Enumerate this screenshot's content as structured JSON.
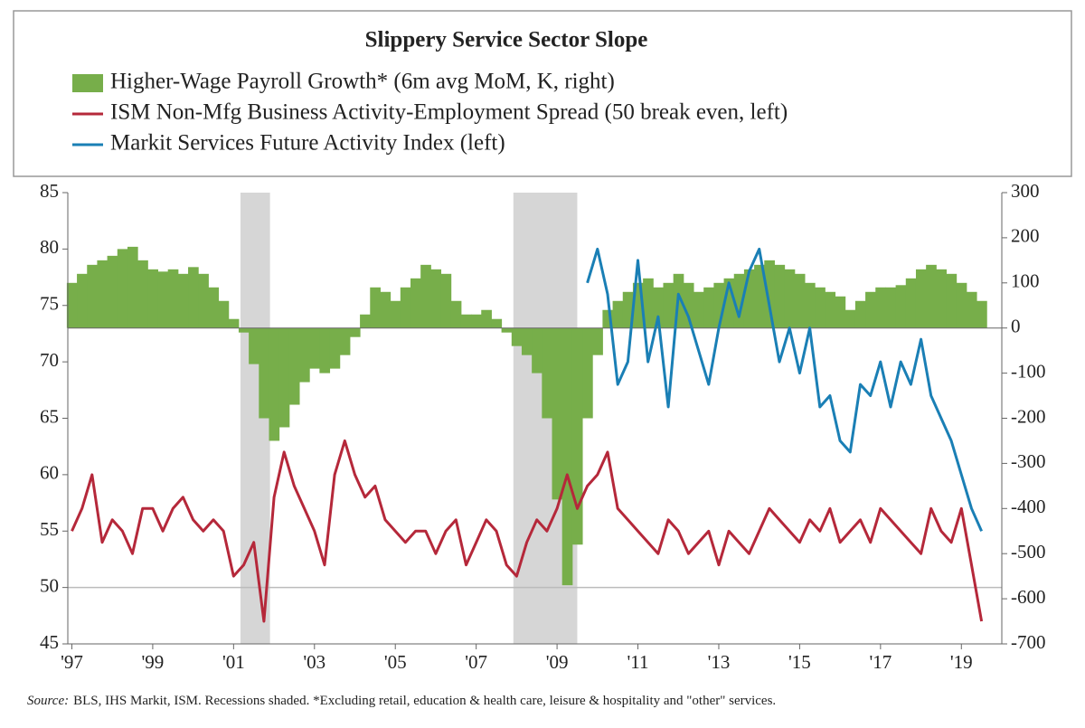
{
  "chart_data": {
    "type": "combo",
    "title": "Slippery Service Sector Slope",
    "source_label": "Source:",
    "source_text": "BLS, IHS Markit, ISM. Recessions shaded. *Excluding retail, education & health care, leisure & hospitality and \"other\" services.",
    "xlim": [
      1996.9,
      2020.0
    ],
    "xticks": [
      {
        "value": 1997,
        "label": "'97"
      },
      {
        "value": 1999,
        "label": "'99"
      },
      {
        "value": 2001,
        "label": "'01"
      },
      {
        "value": 2003,
        "label": "'03"
      },
      {
        "value": 2005,
        "label": "'05"
      },
      {
        "value": 2007,
        "label": "'07"
      },
      {
        "value": 2009,
        "label": "'09"
      },
      {
        "value": 2011,
        "label": "'11"
      },
      {
        "value": 2013,
        "label": "'13"
      },
      {
        "value": 2015,
        "label": "'15"
      },
      {
        "value": 2017,
        "label": "'17"
      },
      {
        "value": 2019,
        "label": "'19"
      }
    ],
    "ylim": [
      45,
      85
    ],
    "yticks": [
      45,
      50,
      55,
      60,
      65,
      70,
      75,
      80,
      85
    ],
    "y2lim": [
      -700,
      300
    ],
    "y2ticks": [
      -700,
      -600,
      -500,
      -400,
      -300,
      -200,
      -100,
      0,
      100,
      200,
      300
    ],
    "reference_line": 50,
    "shaded_regions": [
      [
        2001.17,
        2001.9
      ],
      [
        2007.92,
        2009.5
      ]
    ],
    "x": [
      1997.0,
      1997.25,
      1997.5,
      1997.75,
      1998.0,
      1998.25,
      1998.5,
      1998.75,
      1999.0,
      1999.25,
      1999.5,
      1999.75,
      2000.0,
      2000.25,
      2000.5,
      2000.75,
      2001.0,
      2001.25,
      2001.5,
      2001.75,
      2002.0,
      2002.25,
      2002.5,
      2002.75,
      2003.0,
      2003.25,
      2003.5,
      2003.75,
      2004.0,
      2004.25,
      2004.5,
      2004.75,
      2005.0,
      2005.25,
      2005.5,
      2005.75,
      2006.0,
      2006.25,
      2006.5,
      2006.75,
      2007.0,
      2007.25,
      2007.5,
      2007.75,
      2008.0,
      2008.25,
      2008.5,
      2008.75,
      2009.0,
      2009.25,
      2009.5,
      2009.75,
      2010.0,
      2010.25,
      2010.5,
      2010.75,
      2011.0,
      2011.25,
      2011.5,
      2011.75,
      2012.0,
      2012.25,
      2012.5,
      2012.75,
      2013.0,
      2013.25,
      2013.5,
      2013.75,
      2014.0,
      2014.25,
      2014.5,
      2014.75,
      2015.0,
      2015.25,
      2015.5,
      2015.75,
      2016.0,
      2016.25,
      2016.5,
      2016.75,
      2017.0,
      2017.25,
      2017.5,
      2017.75,
      2018.0,
      2018.25,
      2018.5,
      2018.75,
      2019.0,
      2019.25,
      2019.5
    ],
    "series": [
      {
        "name": "Higher-Wage Payroll Growth* (6m avg MoM, K, right)",
        "type": "bar",
        "axis": "y2",
        "color": "#77ae4a",
        "values": [
          100,
          120,
          140,
          150,
          160,
          175,
          180,
          150,
          130,
          125,
          130,
          120,
          135,
          120,
          90,
          60,
          20,
          -10,
          -80,
          -200,
          -250,
          -220,
          -170,
          -120,
          -90,
          -100,
          -90,
          -60,
          -20,
          30,
          90,
          80,
          60,
          90,
          110,
          140,
          130,
          120,
          60,
          30,
          30,
          40,
          20,
          -10,
          -40,
          -60,
          -100,
          -200,
          -380,
          -570,
          -480,
          -200,
          -60,
          40,
          60,
          80,
          100,
          110,
          90,
          100,
          120,
          100,
          80,
          90,
          100,
          110,
          120,
          130,
          140,
          150,
          140,
          130,
          120,
          100,
          90,
          80,
          70,
          40,
          60,
          80,
          90,
          90,
          95,
          110,
          130,
          140,
          130,
          120,
          100,
          80,
          60
        ]
      },
      {
        "name": "ISM Non-Mfg Business Activity-Employment Spread (50 break even, left)",
        "type": "line",
        "color": "#b5283a",
        "values": [
          55,
          57,
          60,
          54,
          56,
          55,
          53,
          57,
          57,
          55,
          57,
          58,
          56,
          55,
          56,
          55,
          51,
          52,
          54,
          47,
          58,
          62,
          59,
          57,
          55,
          52,
          60,
          63,
          60,
          58,
          59,
          56,
          55,
          54,
          55,
          55,
          53,
          55,
          56,
          52,
          54,
          56,
          55,
          52,
          51,
          54,
          56,
          55,
          57,
          60,
          57,
          59,
          60,
          62,
          57,
          56,
          55,
          54,
          53,
          56,
          55,
          53,
          54,
          55,
          52,
          55,
          54,
          53,
          55,
          57,
          56,
          55,
          54,
          56,
          55,
          57,
          54,
          55,
          56,
          54,
          57,
          56,
          55,
          54,
          53,
          57,
          55,
          54,
          57,
          52,
          47
        ]
      },
      {
        "name": "Markit Services Future Activity Index (left)",
        "type": "line",
        "color": "#1a7fb5",
        "values": [
          null,
          null,
          null,
          null,
          null,
          null,
          null,
          null,
          null,
          null,
          null,
          null,
          null,
          null,
          null,
          null,
          null,
          null,
          null,
          null,
          null,
          null,
          null,
          null,
          null,
          null,
          null,
          null,
          null,
          null,
          null,
          null,
          null,
          null,
          null,
          null,
          null,
          null,
          null,
          null,
          null,
          null,
          null,
          null,
          null,
          null,
          null,
          null,
          null,
          null,
          null,
          77,
          80,
          76,
          68,
          70,
          79,
          70,
          74,
          66,
          76,
          74,
          71,
          68,
          73,
          77,
          74,
          78,
          80,
          75,
          70,
          73,
          69,
          73,
          66,
          67,
          63,
          62,
          68,
          67,
          70,
          66,
          70,
          68,
          72,
          67,
          65,
          63,
          60,
          57,
          55
        ]
      }
    ]
  }
}
